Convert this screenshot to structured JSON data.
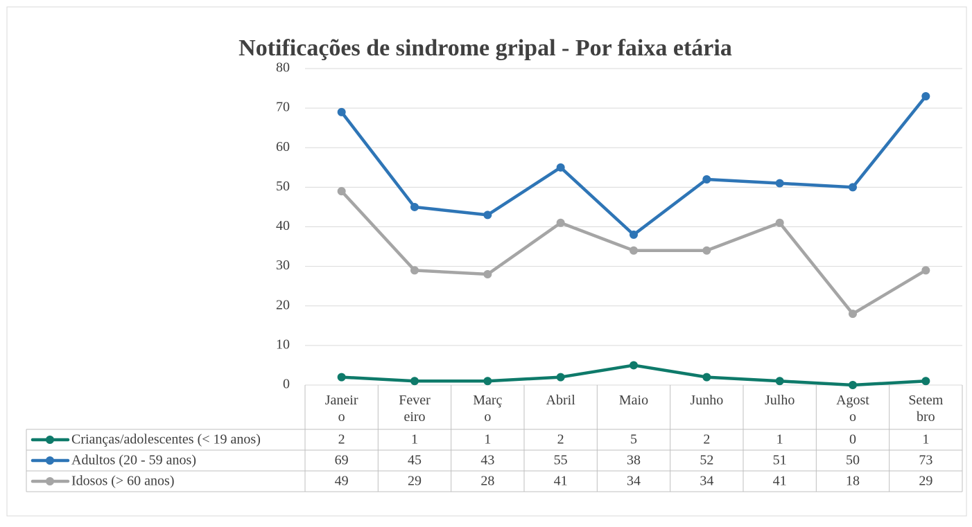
{
  "chart_data": {
    "type": "line",
    "title": "Notificações de sindrome gripal -  Por faixa etária",
    "categories": [
      "Janeiro",
      "Fevereiro",
      "Março",
      "Abril",
      "Maio",
      "Junho",
      "Julho",
      "Agosto",
      "Setembro"
    ],
    "series": [
      {
        "name": "Crianças/adolescentes (< 19 anos)",
        "color": "#0e7a6a",
        "values": [
          2,
          1,
          1,
          2,
          5,
          2,
          1,
          0,
          1
        ]
      },
      {
        "name": "Adultos (20 - 59 anos)",
        "color": "#2e75b6",
        "values": [
          69,
          45,
          43,
          55,
          38,
          52,
          51,
          50,
          73
        ]
      },
      {
        "name": "Idosos (> 60 anos)",
        "color": "#a5a5a5",
        "values": [
          49,
          29,
          28,
          41,
          34,
          34,
          41,
          18,
          29
        ]
      }
    ],
    "ylim": [
      0,
      80
    ],
    "yticks": [
      0,
      10,
      20,
      30,
      40,
      50,
      60,
      70,
      80
    ],
    "grid": true
  }
}
